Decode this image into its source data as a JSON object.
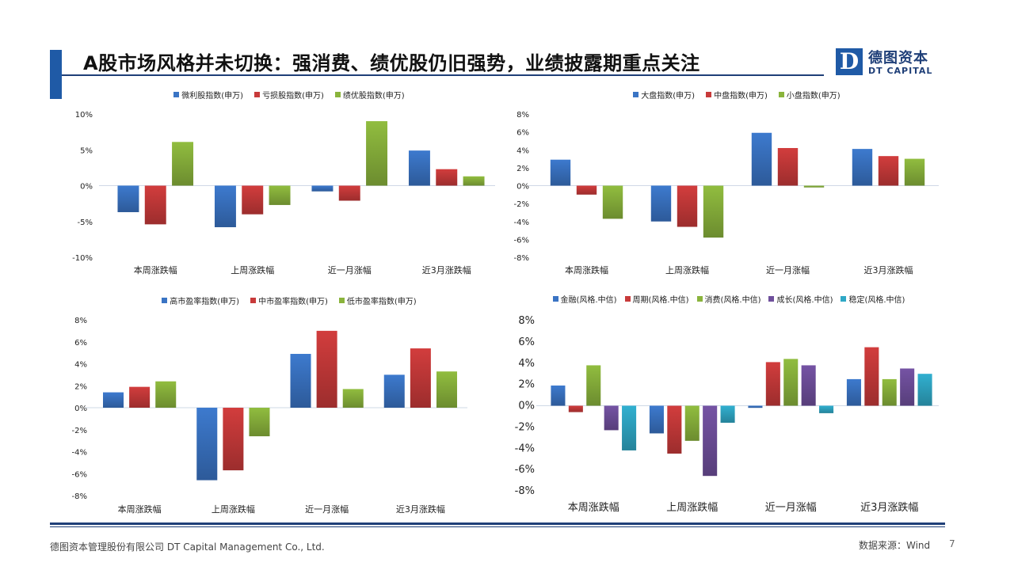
{
  "title": "A股市场风格并未切换：强消费、绩优股仍旧强势，业绩披露期重点关注",
  "logo": {
    "mark": "D",
    "cn": "德图资本",
    "en": "DT CAPITAL"
  },
  "footer": {
    "company": "德图资本管理股份有限公司  DT Capital  Management  Co., Ltd.",
    "source": "数据来源：Wind",
    "page": "7"
  },
  "colors": {
    "blue": "#3a74c4",
    "red": "#c83a3a",
    "green": "#8ab43c",
    "purple": "#6f4f9c",
    "teal": "#2fa8c6",
    "brand": "#1f5aa6"
  },
  "chart_data": [
    {
      "type": "bar",
      "categories": [
        "本周涨跌幅",
        "上周涨跌幅",
        "近一月涨幅",
        "近3月涨跌幅"
      ],
      "ylim": [
        -10,
        10
      ],
      "yticks": [
        10,
        5,
        0,
        -5,
        -10
      ],
      "ytick_labels": [
        "10%",
        "5%",
        "0%",
        "-5%",
        "-10%"
      ],
      "series": [
        {
          "name": "微利股指数(申万)",
          "color": "#3a74c4",
          "values": [
            -3.7,
            -5.8,
            -0.8,
            4.9
          ]
        },
        {
          "name": "亏损股指数(申万)",
          "color": "#c83a3a",
          "values": [
            -5.4,
            -4.0,
            -2.1,
            2.3
          ]
        },
        {
          "name": "绩优股指数(申万)",
          "color": "#8ab43c",
          "values": [
            6.1,
            -2.7,
            9.0,
            1.3
          ]
        }
      ]
    },
    {
      "type": "bar",
      "categories": [
        "本周涨跌幅",
        "上周涨跌幅",
        "近一月涨幅",
        "近3月涨跌幅"
      ],
      "ylim": [
        -8,
        8
      ],
      "yticks": [
        8,
        6,
        4,
        2,
        0,
        -2,
        -4,
        -6,
        -8
      ],
      "ytick_labels": [
        "8%",
        "6%",
        "4%",
        "2%",
        "0%",
        "-2%",
        "-4%",
        "-6%",
        "-8%"
      ],
      "series": [
        {
          "name": "大盘指数(申万)",
          "color": "#3a74c4",
          "values": [
            2.9,
            -4.0,
            5.9,
            4.1
          ]
        },
        {
          "name": "中盘指数(申万)",
          "color": "#c83a3a",
          "values": [
            -1.0,
            -4.6,
            4.2,
            3.3
          ]
        },
        {
          "name": "小盘指数(申万)",
          "color": "#8ab43c",
          "values": [
            -3.7,
            -5.8,
            -0.2,
            3.0
          ]
        }
      ]
    },
    {
      "type": "bar",
      "categories": [
        "本周涨跌幅",
        "上周涨跌幅",
        "近一月涨幅",
        "近3月涨跌幅"
      ],
      "ylim": [
        -8,
        8
      ],
      "yticks": [
        8,
        6,
        4,
        2,
        0,
        -2,
        -4,
        -6,
        -8
      ],
      "ytick_labels": [
        "8%",
        "6%",
        "4%",
        "2%",
        "0%",
        "-2%",
        "-4%",
        "-6%",
        "-8%"
      ],
      "series": [
        {
          "name": "高市盈率指数(申万)",
          "color": "#3a74c4",
          "values": [
            1.4,
            -6.6,
            4.9,
            3.0
          ]
        },
        {
          "name": "中市盈率指数(申万)",
          "color": "#c83a3a",
          "values": [
            1.9,
            -5.7,
            7.0,
            5.4
          ]
        },
        {
          "name": "低市盈率指数(申万)",
          "color": "#8ab43c",
          "values": [
            2.4,
            -2.6,
            1.7,
            3.3
          ]
        }
      ]
    },
    {
      "type": "bar",
      "categories": [
        "本周涨跌幅",
        "上周涨跌幅",
        "近一月涨幅",
        "近3月涨跌幅"
      ],
      "ylim": [
        -8,
        8
      ],
      "yticks": [
        8,
        6,
        4,
        2,
        0,
        -2,
        -4,
        -6,
        -8
      ],
      "ytick_labels": [
        "8%",
        "6%",
        "4%",
        "2%",
        "0%",
        "-2%",
        "-4%",
        "-6%",
        "-8%"
      ],
      "series": [
        {
          "name": "金融(风格.中信)",
          "color": "#3a74c4",
          "values": [
            1.9,
            -2.6,
            -0.2,
            2.5
          ]
        },
        {
          "name": "周期(风格.中信)",
          "color": "#c83a3a",
          "values": [
            -0.6,
            -4.5,
            4.1,
            5.5
          ]
        },
        {
          "name": "消费(风格.中信)",
          "color": "#8ab43c",
          "values": [
            3.8,
            -3.3,
            4.4,
            2.5
          ]
        },
        {
          "name": "成长(风格.中信)",
          "color": "#6f4f9c",
          "values": [
            -2.3,
            -6.6,
            3.8,
            3.5
          ]
        },
        {
          "name": "稳定(风格.中信)",
          "color": "#2fa8c6",
          "values": [
            -4.2,
            -1.6,
            -0.7,
            3.0
          ]
        }
      ]
    }
  ]
}
